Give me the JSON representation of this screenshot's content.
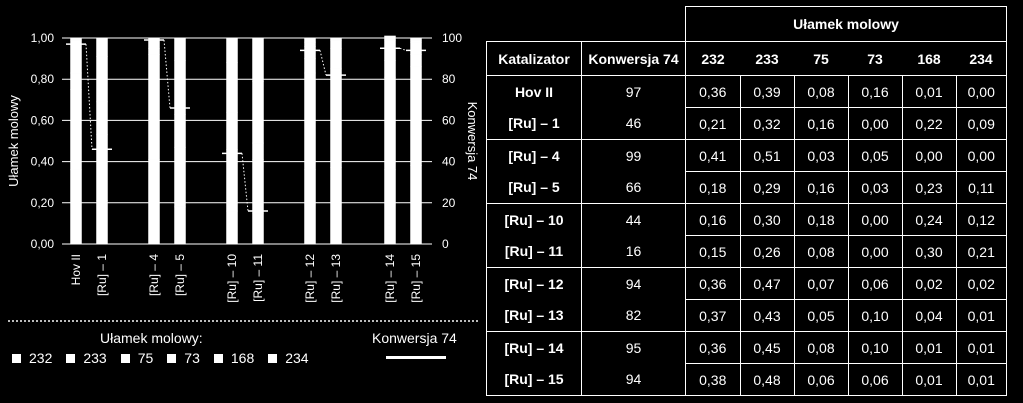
{
  "chart_data": {
    "type": "bar",
    "categories": [
      "Hov II",
      "[Ru] – 1",
      "[Ru] – 4",
      "[Ru] – 5",
      "[Ru] – 10",
      "[Ru] – 11",
      "[Ru] – 12",
      "[Ru] – 13",
      "[Ru] – 14",
      "[Ru] – 15"
    ],
    "stacked": true,
    "ylabel": "Ułamek molowy",
    "y2label": "Konwersja 74",
    "ylim": [
      0,
      1
    ],
    "y2lim": [
      0,
      100
    ],
    "yticks": [
      "0,00",
      "0,20",
      "0,40",
      "0,60",
      "0,80",
      "1,00"
    ],
    "y2ticks": [
      "0",
      "20",
      "40",
      "60",
      "80",
      "100"
    ],
    "series": [
      {
        "name": "232",
        "values": [
          0.36,
          0.21,
          0.41,
          0.18,
          0.16,
          0.15,
          0.36,
          0.37,
          0.36,
          0.38
        ]
      },
      {
        "name": "233",
        "values": [
          0.39,
          0.32,
          0.51,
          0.29,
          0.3,
          0.26,
          0.47,
          0.43,
          0.45,
          0.48
        ]
      },
      {
        "name": "75",
        "values": [
          0.08,
          0.16,
          0.03,
          0.16,
          0.18,
          0.08,
          0.07,
          0.05,
          0.08,
          0.06
        ]
      },
      {
        "name": "73",
        "values": [
          0.16,
          0.0,
          0.05,
          0.03,
          0.0,
          0.0,
          0.06,
          0.1,
          0.1,
          0.06
        ]
      },
      {
        "name": "168",
        "values": [
          0.01,
          0.22,
          0.0,
          0.23,
          0.24,
          0.3,
          0.02,
          0.04,
          0.01,
          0.01
        ]
      },
      {
        "name": "234",
        "values": [
          0.0,
          0.09,
          0.0,
          0.11,
          0.12,
          0.21,
          0.02,
          0.01,
          0.01,
          0.01
        ]
      }
    ],
    "conversion": {
      "name": "Konwersja 74",
      "values": [
        97,
        46,
        99,
        66,
        44,
        16,
        94,
        82,
        95,
        94
      ]
    },
    "grid": true,
    "legend_position": "bottom"
  },
  "legend": {
    "title": "Ułamek molowy:",
    "items": [
      "232",
      "233",
      "75",
      "73",
      "168",
      "234"
    ],
    "conversion_label": "Konwersja 74"
  },
  "table": {
    "group_header": "Ułamek molowy",
    "col_catalyst": "Katalizator",
    "col_conversion": "Konwersja 74",
    "species": [
      "232",
      "233",
      "75",
      "73",
      "168",
      "234"
    ],
    "rows": [
      {
        "name": "Hov II",
        "conv": "97",
        "vals": [
          "0,36",
          "0,39",
          "0,08",
          "0,16",
          "0,01",
          "0,00"
        ]
      },
      {
        "name": "[Ru] – 1",
        "conv": "46",
        "vals": [
          "0,21",
          "0,32",
          "0,16",
          "0,00",
          "0,22",
          "0,09"
        ]
      },
      {
        "name": "[Ru] – 4",
        "conv": "99",
        "vals": [
          "0,41",
          "0,51",
          "0,03",
          "0,05",
          "0,00",
          "0,00"
        ]
      },
      {
        "name": "[Ru] – 5",
        "conv": "66",
        "vals": [
          "0,18",
          "0,29",
          "0,16",
          "0,03",
          "0,23",
          "0,11"
        ]
      },
      {
        "name": "[Ru] – 10",
        "conv": "44",
        "vals": [
          "0,16",
          "0,30",
          "0,18",
          "0,00",
          "0,24",
          "0,12"
        ]
      },
      {
        "name": "[Ru] – 11",
        "conv": "16",
        "vals": [
          "0,15",
          "0,26",
          "0,08",
          "0,00",
          "0,30",
          "0,21"
        ]
      },
      {
        "name": "[Ru] – 12",
        "conv": "94",
        "vals": [
          "0,36",
          "0,47",
          "0,07",
          "0,06",
          "0,02",
          "0,02"
        ]
      },
      {
        "name": "[Ru] – 13",
        "conv": "82",
        "vals": [
          "0,37",
          "0,43",
          "0,05",
          "0,10",
          "0,04",
          "0,01"
        ]
      },
      {
        "name": "[Ru] – 14",
        "conv": "95",
        "vals": [
          "0,36",
          "0,45",
          "0,08",
          "0,10",
          "0,01",
          "0,01"
        ]
      },
      {
        "name": "[Ru] – 15",
        "conv": "94",
        "vals": [
          "0,38",
          "0,48",
          "0,06",
          "0,06",
          "0,01",
          "0,01"
        ]
      }
    ]
  }
}
